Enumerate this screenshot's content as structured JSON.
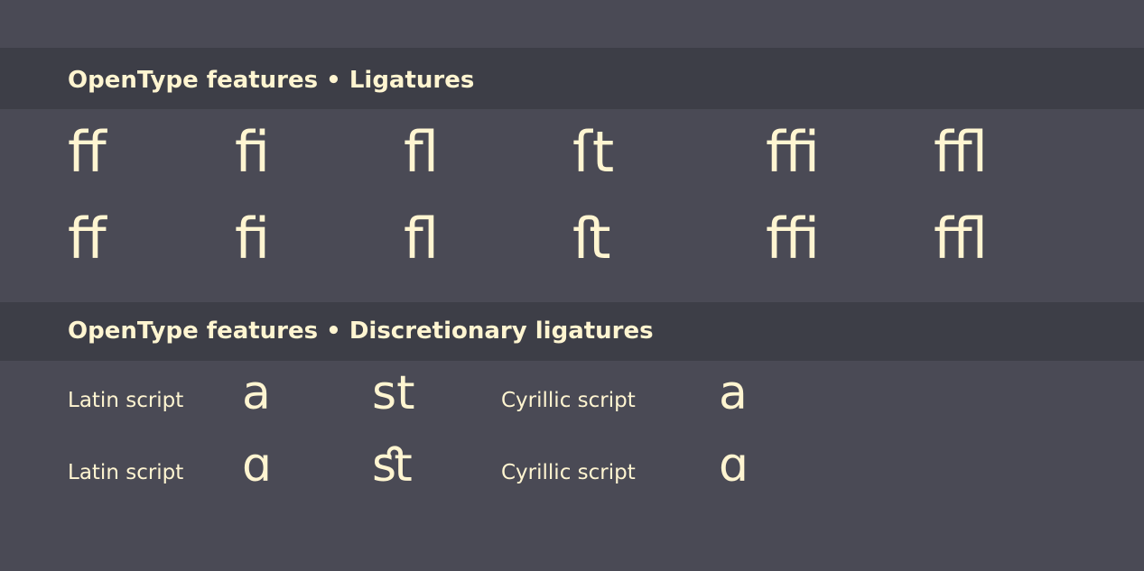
{
  "sections": [
    {
      "title": "OpenType features • Ligatures",
      "rows": [
        [
          "ff",
          "fi",
          "fl",
          "ſt",
          "ffi",
          "ffl"
        ],
        [
          "ﬀ",
          "ﬁ",
          "ﬂ",
          "ﬅ",
          "ﬃ",
          "ﬄ"
        ]
      ]
    },
    {
      "title": "OpenType features • Discretionary ligatures",
      "rows": [
        {
          "label_1": "Latin script",
          "sample_1": "a",
          "sample_2": "st",
          "label_2": "Cyrillic script",
          "sample_3": "а"
        },
        {
          "label_1": "Latin script",
          "sample_1": "ɑ",
          "sample_2": "ﬆ",
          "label_2": "Cyrillic script",
          "sample_3": "ɑ"
        }
      ]
    }
  ],
  "colors": {
    "background": "#4a4a55",
    "band": "#3d3e47",
    "text": "#fff5d1"
  }
}
